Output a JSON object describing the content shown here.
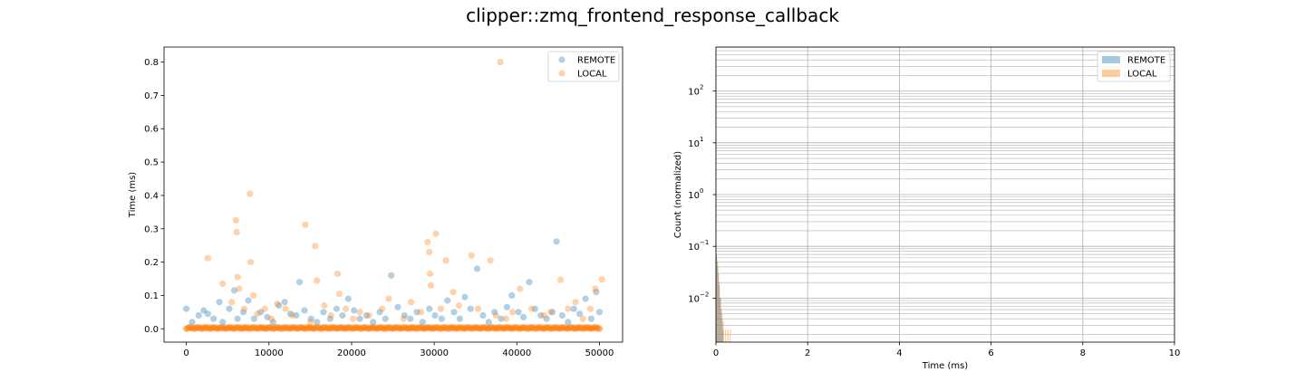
{
  "figure": {
    "suptitle": "clipper::zmq_frontend_response_callback"
  },
  "colors": {
    "remote": "#1f77b4",
    "local": "#ff7f0e",
    "grid": "#b0b0b0",
    "axes": "#000000"
  },
  "chart_data": [
    {
      "type": "scatter",
      "title": "",
      "xlabel": "",
      "ylabel": "Time (ms)",
      "xlim": [
        -2700,
        52800
      ],
      "ylim": [
        -0.04,
        0.845
      ],
      "xticks": [
        0,
        10000,
        20000,
        30000,
        40000,
        50000
      ],
      "xtick_labels": [
        "0",
        "10000",
        "20000",
        "30000",
        "40000",
        "50000"
      ],
      "yticks": [
        0.0,
        0.1,
        0.2,
        0.3,
        0.4,
        0.5,
        0.6,
        0.7,
        0.8
      ],
      "ytick_labels": [
        "0.0",
        "0.1",
        "0.2",
        "0.3",
        "0.4",
        "0.5",
        "0.6",
        "0.7",
        "0.8"
      ],
      "grid": false,
      "legend_position": "top-right",
      "baseline": {
        "x_start": 0,
        "x_end": 50000,
        "y": 0.0,
        "color": "#ff7f0e"
      },
      "series": [
        {
          "name": "REMOTE",
          "color": "#1f77b4",
          "alpha": 0.35,
          "points": [
            [
              0,
              0.06
            ],
            [
              700,
              0.02
            ],
            [
              1500,
              0.04
            ],
            [
              2100,
              0.055
            ],
            [
              2600,
              0.045
            ],
            [
              3300,
              0.03
            ],
            [
              4000,
              0.08
            ],
            [
              4400,
              0.02
            ],
            [
              5200,
              0.06
            ],
            [
              5800,
              0.115
            ],
            [
              6200,
              0.03
            ],
            [
              6900,
              0.05
            ],
            [
              7500,
              0.085
            ],
            [
              8200,
              0.03
            ],
            [
              9000,
              0.05
            ],
            [
              9800,
              0.035
            ],
            [
              10500,
              0.02
            ],
            [
              11200,
              0.07
            ],
            [
              11900,
              0.08
            ],
            [
              12600,
              0.045
            ],
            [
              13300,
              0.04
            ],
            [
              13700,
              0.14
            ],
            [
              14300,
              0.055
            ],
            [
              15100,
              0.03
            ],
            [
              15800,
              0.02
            ],
            [
              16600,
              0.05
            ],
            [
              17400,
              0.03
            ],
            [
              18200,
              0.06
            ],
            [
              18900,
              0.04
            ],
            [
              19600,
              0.09
            ],
            [
              20300,
              0.055
            ],
            [
              21000,
              0.03
            ],
            [
              21800,
              0.04
            ],
            [
              22600,
              0.02
            ],
            [
              23400,
              0.05
            ],
            [
              24100,
              0.03
            ],
            [
              24800,
              0.16
            ],
            [
              25600,
              0.065
            ],
            [
              26400,
              0.04
            ],
            [
              27100,
              0.03
            ],
            [
              27900,
              0.05
            ],
            [
              28600,
              0.02
            ],
            [
              29400,
              0.06
            ],
            [
              30100,
              0.04
            ],
            [
              30900,
              0.03
            ],
            [
              31600,
              0.085
            ],
            [
              32400,
              0.05
            ],
            [
              33100,
              0.03
            ],
            [
              33700,
              0.095
            ],
            [
              34400,
              0.06
            ],
            [
              35200,
              0.18
            ],
            [
              35900,
              0.04
            ],
            [
              36600,
              0.02
            ],
            [
              37300,
              0.05
            ],
            [
              38100,
              0.03
            ],
            [
              38800,
              0.065
            ],
            [
              39400,
              0.1
            ],
            [
              40200,
              0.05
            ],
            [
              40800,
              0.035
            ],
            [
              41500,
              0.14
            ],
            [
              42200,
              0.06
            ],
            [
              42900,
              0.04
            ],
            [
              43600,
              0.03
            ],
            [
              44300,
              0.05
            ],
            [
              44800,
              0.262
            ],
            [
              45500,
              0.04
            ],
            [
              46200,
              0.02
            ],
            [
              46900,
              0.06
            ],
            [
              47600,
              0.045
            ],
            [
              48300,
              0.09
            ],
            [
              49000,
              0.03
            ],
            [
              49600,
              0.11
            ],
            [
              50000,
              0.05
            ]
          ]
        },
        {
          "name": "LOCAL",
          "color": "#ff7f0e",
          "alpha": 0.35,
          "points": [
            [
              2600,
              0.212
            ],
            [
              4400,
              0.135
            ],
            [
              5500,
              0.08
            ],
            [
              6000,
              0.325
            ],
            [
              6100,
              0.29
            ],
            [
              6200,
              0.155
            ],
            [
              6400,
              0.12
            ],
            [
              7000,
              0.06
            ],
            [
              7700,
              0.405
            ],
            [
              7800,
              0.2
            ],
            [
              8100,
              0.1
            ],
            [
              8600,
              0.045
            ],
            [
              9500,
              0.06
            ],
            [
              10300,
              0.03
            ],
            [
              11000,
              0.075
            ],
            [
              12000,
              0.06
            ],
            [
              12800,
              0.04
            ],
            [
              14400,
              0.312
            ],
            [
              15000,
              0.02
            ],
            [
              15600,
              0.248
            ],
            [
              15800,
              0.145
            ],
            [
              16700,
              0.07
            ],
            [
              17500,
              0.04
            ],
            [
              18300,
              0.165
            ],
            [
              18500,
              0.105
            ],
            [
              19300,
              0.06
            ],
            [
              20200,
              0.03
            ],
            [
              21000,
              0.05
            ],
            [
              22100,
              0.04
            ],
            [
              23700,
              0.06
            ],
            [
              24500,
              0.09
            ],
            [
              26300,
              0.03
            ],
            [
              27200,
              0.08
            ],
            [
              28400,
              0.05
            ],
            [
              29200,
              0.26
            ],
            [
              29400,
              0.23
            ],
            [
              29500,
              0.165
            ],
            [
              29600,
              0.13
            ],
            [
              30200,
              0.285
            ],
            [
              30800,
              0.06
            ],
            [
              31400,
              0.205
            ],
            [
              32300,
              0.11
            ],
            [
              33000,
              0.07
            ],
            [
              34500,
              0.22
            ],
            [
              35300,
              0.06
            ],
            [
              36800,
              0.205
            ],
            [
              37500,
              0.04
            ],
            [
              38000,
              0.8
            ],
            [
              38700,
              0.03
            ],
            [
              39500,
              0.05
            ],
            [
              40400,
              0.12
            ],
            [
              41800,
              0.06
            ],
            [
              43300,
              0.04
            ],
            [
              44100,
              0.05
            ],
            [
              45300,
              0.147
            ],
            [
              46200,
              0.06
            ],
            [
              47100,
              0.08
            ],
            [
              48000,
              0.03
            ],
            [
              48900,
              0.06
            ],
            [
              49500,
              0.12
            ],
            [
              50300,
              0.148
            ]
          ]
        }
      ]
    },
    {
      "type": "histogram",
      "title": "",
      "xlabel": "Time (ms)",
      "ylabel": "Count (normalized)",
      "xlim": [
        0,
        10
      ],
      "ylim_log10": [
        -2.85,
        2.85
      ],
      "xticks": [
        0,
        2,
        4,
        6,
        8,
        10
      ],
      "xtick_labels": [
        "0",
        "2",
        "4",
        "6",
        "8",
        "10"
      ],
      "yticks_log10": [
        -2,
        -1,
        0,
        1,
        2
      ],
      "ytick_labels": [
        "10",
        "10",
        "10",
        "10",
        "10"
      ],
      "ytick_exponents": [
        "−2",
        "−1",
        "0",
        "1",
        "2"
      ],
      "yscale": "log",
      "grid": true,
      "legend_position": "top-right",
      "series": [
        {
          "name": "REMOTE",
          "color": "#1f77b4",
          "alpha": 0.4,
          "bars": [
            [
              0.0,
              0.07
            ],
            [
              0.02,
              0.05
            ],
            [
              0.04,
              0.03
            ],
            [
              0.06,
              0.018
            ],
            [
              0.08,
              0.01
            ],
            [
              0.1,
              0.006
            ],
            [
              0.12,
              0.004
            ],
            [
              0.14,
              0.0025
            ]
          ]
        },
        {
          "name": "LOCAL",
          "color": "#ff7f0e",
          "alpha": 0.4,
          "bars": [
            [
              0.0,
              0.06
            ],
            [
              0.03,
              0.04
            ],
            [
              0.06,
              0.02
            ],
            [
              0.09,
              0.01
            ],
            [
              0.12,
              0.005
            ],
            [
              0.15,
              0.0035
            ],
            [
              0.2,
              0.0025
            ],
            [
              0.25,
              0.0025
            ],
            [
              0.3,
              0.0025
            ]
          ]
        }
      ]
    }
  ]
}
